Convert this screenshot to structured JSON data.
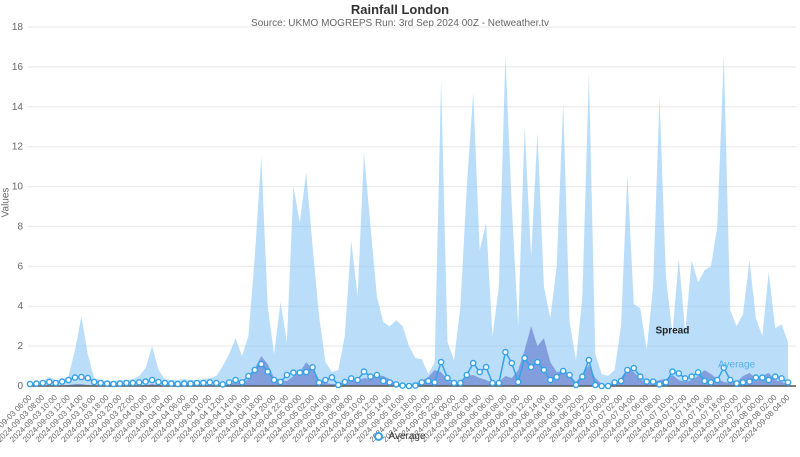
{
  "chart": {
    "title": "Rainfall London",
    "subtitle": "Source: UKMO MOGREPS Run: 3rd Sep 2024 00Z - Netweather.tv",
    "y_axis_title": "Values",
    "legend_label": "Average"
  },
  "chart_data": {
    "type": "area",
    "title": "Rainfall London",
    "subtitle": "Source: UKMO MOGREPS Run: 3rd Sep 2024 00Z - Netweather.tv",
    "xlabel": "",
    "ylabel": "Values",
    "ylim": [
      0,
      18
    ],
    "y_ticks": [
      0,
      2,
      4,
      6,
      8,
      10,
      12,
      14,
      16,
      18
    ],
    "grid": true,
    "legend_position": "bottom-center",
    "points_per_tick": 2,
    "x_tick_labels": [
      "2024-09-03 06:00",
      "2024-09-03 08:00",
      "2024-09-03 10:00",
      "2024-09-03 12:00",
      "2024-09-03 14:00",
      "2024-09-03 16:00",
      "2024-09-03 18:00",
      "2024-09-03 20:00",
      "2024-09-03 22:00",
      "2024-09-04 00:00",
      "2024-09-04 02:00",
      "2024-09-04 04:00",
      "2024-09-04 06:00",
      "2024-09-04 08:00",
      "2024-09-04 10:00",
      "2024-09-04 12:00",
      "2024-09-04 14:00",
      "2024-09-04 16:00",
      "2024-09-04 18:00",
      "2024-09-04 20:00",
      "2024-09-04 22:00",
      "2024-09-05 00:00",
      "2024-09-05 02:00",
      "2024-09-05 04:00",
      "2024-09-05 06:00",
      "2024-09-05 08:00",
      "2024-09-05 10:00",
      "2024-09-05 12:00",
      "2024-09-05 14:00",
      "2024-09-05 16:00",
      "2024-09-05 18:00",
      "2024-09-05 20:00",
      "2024-09-05 22:00",
      "2024-09-06 00:00",
      "2024-09-06 02:00",
      "2024-09-06 04:00",
      "2024-09-06 06:00",
      "2024-09-06 08:00",
      "2024-09-06 10:00",
      "2024-09-06 12:00",
      "2024-09-06 14:00",
      "2024-09-06 16:00",
      "2024-09-06 18:00",
      "2024-09-06 20:00",
      "2024-09-06 22:00",
      "2024-09-07 00:00",
      "2024-09-07 02:00",
      "2024-09-07 04:00",
      "2024-09-07 06:00",
      "2024-09-07 08:00",
      "2024-09-07 10:00",
      "2024-09-07 12:00",
      "2024-09-07 14:00",
      "2024-09-07 16:00",
      "2024-09-07 18:00",
      "2024-09-07 20:00",
      "2024-09-07 22:00",
      "2024-09-08 00:00",
      "2024-09-08 02:00",
      "2024-09-08 04:00"
    ],
    "series": [
      {
        "name": "Spread",
        "type": "area",
        "color": "rgba(130,195,245,0.55)",
        "values": [
          0.15,
          0.2,
          0.25,
          0.45,
          0.3,
          0.3,
          0.5,
          1.8,
          3.5,
          1.6,
          0.4,
          0.3,
          0.25,
          0.25,
          0.3,
          0.3,
          0.35,
          0.5,
          0.9,
          2.0,
          0.8,
          0.35,
          0.3,
          0.3,
          0.35,
          0.3,
          0.3,
          0.35,
          0.4,
          0.5,
          1.0,
          1.6,
          2.4,
          1.5,
          2.5,
          6.5,
          11.5,
          4.0,
          1.6,
          4.2,
          2.2,
          10.0,
          8.2,
          10.7,
          7.0,
          3.5,
          1.2,
          0.7,
          0.8,
          2.5,
          7.3,
          4.5,
          11.7,
          8.0,
          4.5,
          3.2,
          3.0,
          3.3,
          3.0,
          2.0,
          1.4,
          1.35,
          0.6,
          1.2,
          15.3,
          2.2,
          1.3,
          4.0,
          10.0,
          14.7,
          6.8,
          8.2,
          2.5,
          5.0,
          16.6,
          9.0,
          3.0,
          13.0,
          6.5,
          12.7,
          5.0,
          3.4,
          6.0,
          14.2,
          3.2,
          1.3,
          4.5,
          15.7,
          1.6,
          0.6,
          0.5,
          0.8,
          3.0,
          10.6,
          4.1,
          3.9,
          1.8,
          5.0,
          14.5,
          5.5,
          2.6,
          6.4,
          2.7,
          6.3,
          5.2,
          5.8,
          6.0,
          8.0,
          16.6,
          3.8,
          3.0,
          3.6,
          6.3,
          3.4,
          2.5,
          5.7,
          2.9,
          3.1,
          2.2
        ]
      },
      {
        "name": "",
        "type": "area",
        "color": "rgba(85,105,195,0.55)",
        "values": [
          0,
          0,
          0,
          0,
          0,
          0,
          0.05,
          0.1,
          0.1,
          0.05,
          0,
          0,
          0,
          0,
          0,
          0,
          0,
          0,
          0.05,
          0.1,
          0.05,
          0,
          0,
          0,
          0,
          0,
          0,
          0,
          0,
          0,
          0,
          0.1,
          0.2,
          0.15,
          0.35,
          0.9,
          1.5,
          1.1,
          0.4,
          0.3,
          0.25,
          0.5,
          0.7,
          1.2,
          0.85,
          0.3,
          0.15,
          0.1,
          0.1,
          0.15,
          0.3,
          0.25,
          0.4,
          0.35,
          0.55,
          0.5,
          0.35,
          0.15,
          0.1,
          0.1,
          0.15,
          0.25,
          0.45,
          0.8,
          0.7,
          0.3,
          0.1,
          0.25,
          0.5,
          0.55,
          0.4,
          0.3,
          0.15,
          0.2,
          0.5,
          0.4,
          0.8,
          1.8,
          3.0,
          2.0,
          2.4,
          1.2,
          0.7,
          0.75,
          0.5,
          0.2,
          0.6,
          1.05,
          0.4,
          0.1,
          0.05,
          0.1,
          0.4,
          0.9,
          0.7,
          0.35,
          0.15,
          0.2,
          0.3,
          0.35,
          0.55,
          0.3,
          0.2,
          0.3,
          0.5,
          0.8,
          0.6,
          0.35,
          0.2,
          0.15,
          0.2,
          0.5,
          0.65,
          0.4,
          0.5,
          0.65,
          0.3,
          0.2,
          0.1
        ]
      },
      {
        "name": "Average",
        "type": "line",
        "color": "#35a2e8",
        "marker": "circle",
        "values": [
          0.1,
          0.12,
          0.15,
          0.2,
          0.15,
          0.22,
          0.3,
          0.42,
          0.45,
          0.4,
          0.2,
          0.15,
          0.12,
          0.1,
          0.12,
          0.15,
          0.15,
          0.18,
          0.22,
          0.3,
          0.2,
          0.15,
          0.12,
          0.1,
          0.12,
          0.12,
          0.15,
          0.15,
          0.18,
          0.15,
          0.08,
          0.18,
          0.3,
          0.18,
          0.5,
          0.8,
          1.1,
          0.72,
          0.3,
          0.2,
          0.55,
          0.67,
          0.67,
          0.7,
          0.94,
          0.17,
          0.3,
          0.43,
          0.05,
          0.2,
          0.38,
          0.3,
          0.72,
          0.47,
          0.55,
          0.25,
          0.18,
          0.08,
          0.02,
          0,
          0.02,
          0.18,
          0.25,
          0.18,
          1.2,
          0.4,
          0.15,
          0.15,
          0.55,
          1.15,
          0.7,
          0.95,
          0.15,
          0.15,
          1.7,
          1.15,
          0.2,
          1.4,
          0.95,
          1.2,
          0.8,
          0.3,
          0.45,
          0.75,
          0.55,
          0.05,
          0.47,
          1.3,
          0.05,
          0,
          0,
          0.18,
          0.25,
          0.8,
          0.9,
          0.47,
          0.22,
          0.22,
          0.08,
          0.18,
          0.72,
          0.63,
          0.38,
          0.47,
          0.68,
          0.25,
          0.18,
          0.3,
          0.92,
          0.3,
          0.13,
          0.18,
          0.22,
          0.42,
          0.42,
          0.3,
          0.47,
          0.38,
          0.18
        ]
      }
    ],
    "annotations": [
      {
        "text": "Spread",
        "x_index": 100,
        "y_value": 2.75
      },
      {
        "text": "Average",
        "x_index": 110,
        "y_value": 1.05
      }
    ]
  }
}
